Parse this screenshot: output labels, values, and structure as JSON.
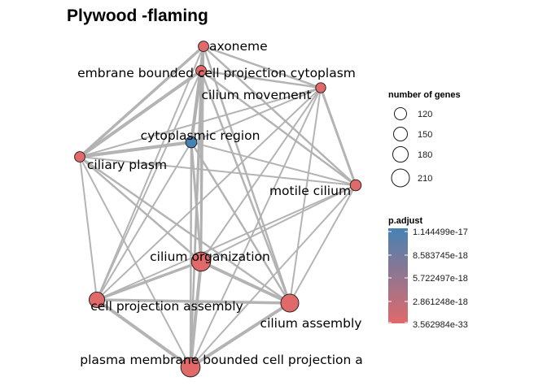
{
  "chart_data": {
    "type": "network",
    "title": "Plywood -flaming",
    "nodes": [
      {
        "name": "axoneme",
        "genes": 112,
        "p_adjust": 3e-33
      },
      {
        "name": "membrane bounded cell projection cytoplasm",
        "displayed_label": "embrane bounded cell projection cytoplasm",
        "genes": 112,
        "p_adjust": 3e-33
      },
      {
        "name": "cilium movement",
        "genes": 108,
        "p_adjust": 3e-33
      },
      {
        "name": "cytoplasmic region",
        "genes": 120,
        "p_adjust": 1.144499e-17
      },
      {
        "name": "ciliary plasm",
        "genes": 112,
        "p_adjust": 3e-33
      },
      {
        "name": "motile cilium",
        "genes": 118,
        "p_adjust": 3e-33
      },
      {
        "name": "cilium organization",
        "genes": 215,
        "p_adjust": 3e-33
      },
      {
        "name": "cell projection assembly",
        "genes": 170,
        "p_adjust": 3e-33
      },
      {
        "name": "cilium assembly",
        "genes": 200,
        "p_adjust": 3e-33
      },
      {
        "name": "plasma membrane bounded cell projection assembly",
        "displayed_label": "plasma membrane bounded cell projection a",
        "genes": 218,
        "p_adjust": 3e-33
      }
    ],
    "edges": [
      {
        "source": "axoneme",
        "target": "membrane bounded cell projection cytoplasm",
        "weight": 3.5
      },
      {
        "source": "axoneme",
        "target": "cilium movement",
        "weight": 2.5
      },
      {
        "source": "axoneme",
        "target": "cytoplasmic region",
        "weight": 3.5
      },
      {
        "source": "axoneme",
        "target": "ciliary plasm",
        "weight": 3.5
      },
      {
        "source": "axoneme",
        "target": "motile cilium",
        "weight": 2.5
      },
      {
        "source": "axoneme",
        "target": "cilium organization",
        "weight": 2.5
      },
      {
        "source": "axoneme",
        "target": "cell projection assembly",
        "weight": 2
      },
      {
        "source": "axoneme",
        "target": "cilium assembly",
        "weight": 2.5
      },
      {
        "source": "axoneme",
        "target": "plasma membrane bounded cell projection assembly",
        "weight": 2
      },
      {
        "source": "membrane bounded cell projection cytoplasm",
        "target": "cilium movement",
        "weight": 2.5
      },
      {
        "source": "membrane bounded cell projection cytoplasm",
        "target": "cytoplasmic region",
        "weight": 4
      },
      {
        "source": "membrane bounded cell projection cytoplasm",
        "target": "ciliary plasm",
        "weight": 4
      },
      {
        "source": "membrane bounded cell projection cytoplasm",
        "target": "motile cilium",
        "weight": 2.5
      },
      {
        "source": "membrane bounded cell projection cytoplasm",
        "target": "cilium organization",
        "weight": 2.5
      },
      {
        "source": "membrane bounded cell projection cytoplasm",
        "target": "cell projection assembly",
        "weight": 2
      },
      {
        "source": "membrane bounded cell projection cytoplasm",
        "target": "cilium assembly",
        "weight": 2.5
      },
      {
        "source": "membrane bounded cell projection cytoplasm",
        "target": "plasma membrane bounded cell projection assembly",
        "weight": 2
      },
      {
        "source": "cilium movement",
        "target": "cytoplasmic region",
        "weight": 2
      },
      {
        "source": "cilium movement",
        "target": "ciliary plasm",
        "weight": 2
      },
      {
        "source": "cilium movement",
        "target": "motile cilium",
        "weight": 3
      },
      {
        "source": "cilium movement",
        "target": "cilium organization",
        "weight": 2
      },
      {
        "source": "cilium movement",
        "target": "cell projection assembly",
        "weight": 2
      },
      {
        "source": "cilium movement",
        "target": "cilium assembly",
        "weight": 2
      },
      {
        "source": "cilium movement",
        "target": "plasma membrane bounded cell projection assembly",
        "weight": 2
      },
      {
        "source": "cytoplasmic region",
        "target": "ciliary plasm",
        "weight": 4
      },
      {
        "source": "cytoplasmic region",
        "target": "motile cilium",
        "weight": 2
      },
      {
        "source": "cytoplasmic region",
        "target": "cilium organization",
        "weight": 3
      },
      {
        "source": "cytoplasmic region",
        "target": "cell projection assembly",
        "weight": 2
      },
      {
        "source": "cytoplasmic region",
        "target": "cilium assembly",
        "weight": 2.5
      },
      {
        "source": "cytoplasmic region",
        "target": "plasma membrane bounded cell projection assembly",
        "weight": 2.5
      },
      {
        "source": "ciliary plasm",
        "target": "motile cilium",
        "weight": 2
      },
      {
        "source": "ciliary plasm",
        "target": "cilium organization",
        "weight": 2.5
      },
      {
        "source": "ciliary plasm",
        "target": "cell projection assembly",
        "weight": 2
      },
      {
        "source": "ciliary plasm",
        "target": "cilium assembly",
        "weight": 2.5
      },
      {
        "source": "ciliary plasm",
        "target": "plasma membrane bounded cell projection assembly",
        "weight": 2
      },
      {
        "source": "motile cilium",
        "target": "cilium organization",
        "weight": 2
      },
      {
        "source": "motile cilium",
        "target": "cell projection assembly",
        "weight": 2
      },
      {
        "source": "motile cilium",
        "target": "cilium assembly",
        "weight": 2
      },
      {
        "source": "motile cilium",
        "target": "plasma membrane bounded cell projection assembly",
        "weight": 2
      },
      {
        "source": "cilium organization",
        "target": "cell projection assembly",
        "weight": 3.5
      },
      {
        "source": "cilium organization",
        "target": "cilium assembly",
        "weight": 4
      },
      {
        "source": "cilium organization",
        "target": "plasma membrane bounded cell projection assembly",
        "weight": 4
      },
      {
        "source": "cell projection assembly",
        "target": "cilium assembly",
        "weight": 3.5
      },
      {
        "source": "cell projection assembly",
        "target": "plasma membrane bounded cell projection assembly",
        "weight": 4
      },
      {
        "source": "cilium assembly",
        "target": "plasma membrane bounded cell projection assembly",
        "weight": 4
      }
    ],
    "size_legend": {
      "title": "number of genes",
      "values": [
        120,
        150,
        180,
        210
      ],
      "labels": [
        "120",
        "150",
        "180",
        "210"
      ]
    },
    "color_legend": {
      "title": "p.adjust",
      "tick_labels": [
        "1.144499e-17",
        "8.583745e-18",
        "5.722497e-18",
        "2.861248e-18",
        "3.562984e-33"
      ],
      "color_high": "#4682b4",
      "color_low": "#e0696a"
    },
    "colors": {
      "edge": "#b0b0b0",
      "node_outline": "#1a1a1a"
    }
  }
}
